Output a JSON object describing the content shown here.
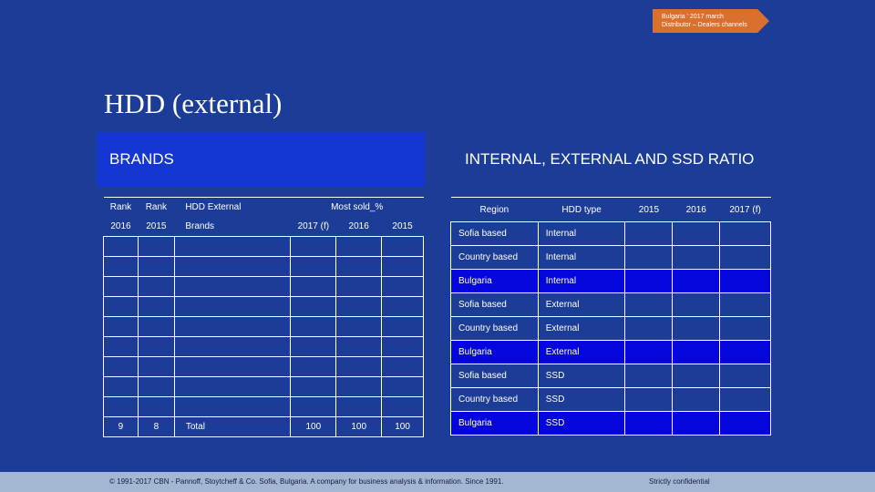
{
  "tag": {
    "line1": "Bulgaria ' 2017 march",
    "line2": "Distributor – Dealers channels"
  },
  "title": "HDD (external)",
  "left": {
    "banner": "BRANDS",
    "header1": [
      "Rank",
      "Rank",
      "HDD External",
      "Most sold_%"
    ],
    "header2": [
      "2016",
      "2015",
      "Brands",
      "2017 (f)",
      "2016",
      "2015"
    ],
    "total": {
      "rank2016": "9",
      "rank2015": "8",
      "label": "Total",
      "v2017": "100",
      "v2016": "100",
      "v2015": "100"
    }
  },
  "right": {
    "banner": "INTERNAL, EXTERNAL AND SSD RATIO",
    "header": [
      "Region",
      "HDD type",
      "2015",
      "2016",
      "2017 (f)"
    ],
    "rows": [
      {
        "region": "Sofia based",
        "type": "Internal"
      },
      {
        "region": "Country based",
        "type": "Internal"
      },
      {
        "region": "Bulgaria",
        "type": "Internal"
      },
      {
        "region": "Sofia based",
        "type": "External"
      },
      {
        "region": "Country based",
        "type": "External"
      },
      {
        "region": "Bulgaria",
        "type": "External"
      },
      {
        "region": "Sofia based",
        "type": "SSD"
      },
      {
        "region": "Country based",
        "type": "SSD"
      },
      {
        "region": "Bulgaria",
        "type": "SSD"
      }
    ]
  },
  "footer": {
    "copyright": "© 1991-2017 CBN - Pannoff, Stoytcheff & Co. Sofia, Bulgaria. A company for business analysis & information. Since 1991.",
    "confidential": "Strictly confidential"
  }
}
